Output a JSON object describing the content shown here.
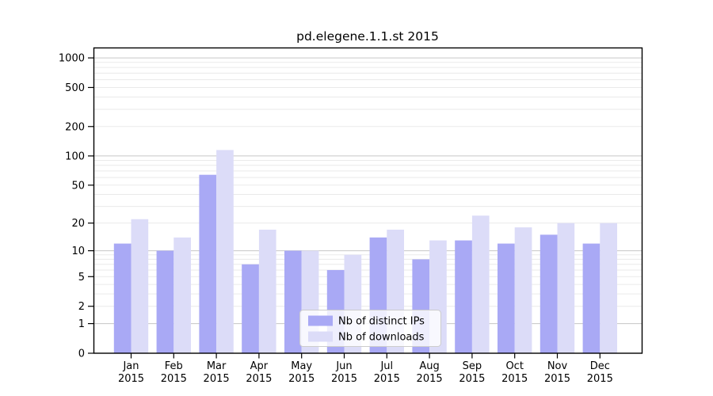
{
  "chart_data": {
    "type": "bar",
    "title": "pd.elegene.1.1.st 2015",
    "categories": [
      "Jan",
      "Feb",
      "Mar",
      "Apr",
      "May",
      "Jun",
      "Jul",
      "Aug",
      "Sep",
      "Oct",
      "Nov",
      "Dec"
    ],
    "x_tick_second_line": "2015",
    "series": [
      {
        "name": "Nb of distinct IPs",
        "color": "#a9a9f5",
        "values": [
          12,
          10,
          64,
          7,
          10,
          6,
          14,
          8,
          13,
          12,
          15,
          12
        ]
      },
      {
        "name": "Nb of downloads",
        "color": "#dcdcf8",
        "values": [
          22,
          14,
          115,
          17,
          10,
          9,
          17,
          13,
          24,
          18,
          20,
          20
        ]
      }
    ],
    "y_scale": "log1p",
    "y_ticks": [
      0,
      1,
      2,
      5,
      10,
      20,
      50,
      100,
      200,
      500,
      1000
    ],
    "y_major_grid": [
      1,
      10,
      100,
      1000
    ],
    "y_minor_grid": [
      3,
      4,
      6,
      7,
      8,
      9,
      30,
      40,
      60,
      70,
      80,
      90,
      300,
      400,
      600,
      700,
      800,
      900
    ],
    "ylim": [
      0,
      1275
    ],
    "grid": true,
    "legend_position": "lower-center",
    "colors": {
      "spine": "#000000",
      "major_grid": "#c6c6c6",
      "minor_grid": "#eaeaea",
      "legend_border": "#cccccc",
      "text": "#000000"
    }
  }
}
